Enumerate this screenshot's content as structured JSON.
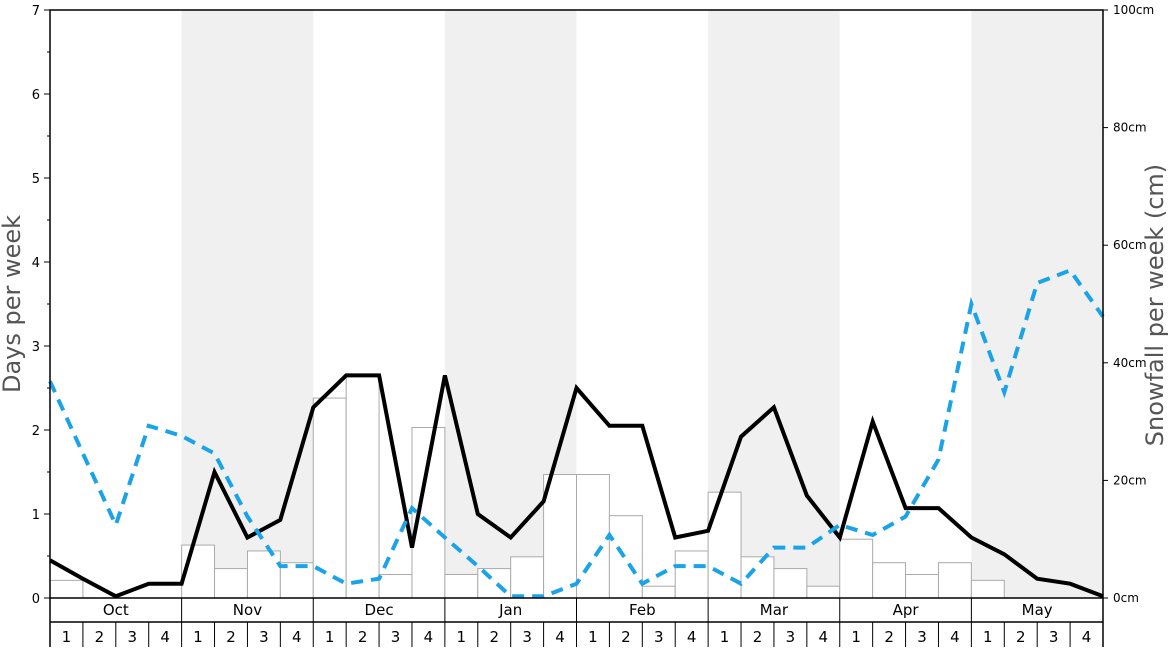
{
  "chart_data": {
    "type": "bar+line",
    "ylabel_left": "Days per week",
    "ylabel_right": "Snowfall per week (cm)",
    "ylim_left": [
      0,
      7
    ],
    "ylim_right": [
      0,
      100
    ],
    "left_ticks": [
      "0",
      "1",
      "2",
      "3",
      "4",
      "5",
      "6",
      "7"
    ],
    "right_ticks": [
      "0cm",
      "20cm",
      "40cm",
      "60cm",
      "80cm",
      "100cm"
    ],
    "months": [
      "Oct",
      "Nov",
      "Dec",
      "Jan",
      "Feb",
      "Mar",
      "Apr",
      "May"
    ],
    "weeks": [
      "1",
      "2",
      "3",
      "4"
    ],
    "month_shading": [
      false,
      true,
      false,
      true,
      false,
      true,
      false,
      true
    ],
    "colors": {
      "shade": "#f0f0f0",
      "bar_fill": "#ffffff",
      "bar_stroke": "#aaaaaa",
      "solid_line": "#000000",
      "dashed_line": "#1aa3e8"
    },
    "series": [
      {
        "kind": "bar",
        "axis": "right",
        "values": [
          3,
          0,
          0,
          0,
          9,
          5,
          8,
          6,
          34,
          38,
          4,
          29,
          4,
          5,
          7,
          21,
          21,
          14,
          2,
          8,
          18,
          7,
          5,
          2,
          10,
          6,
          4,
          6,
          3,
          0,
          0,
          0
        ]
      },
      {
        "kind": "line",
        "style": "solid",
        "axis": "left",
        "values": [
          0.45,
          0.23,
          0.02,
          0.17,
          0.17,
          1.5,
          0.72,
          0.93,
          2.27,
          2.65,
          2.65,
          0.6,
          2.65,
          1.0,
          0.72,
          1.15,
          2.5,
          2.05,
          2.05,
          0.72,
          0.8,
          1.92,
          2.27,
          1.22,
          0.72,
          2.1,
          1.07,
          1.07,
          0.72,
          0.52,
          0.23,
          0.17,
          0.02
        ]
      },
      {
        "kind": "line",
        "style": "dashed",
        "axis": "left",
        "values": [
          2.58,
          1.72,
          0.87,
          2.05,
          1.93,
          1.72,
          0.97,
          0.38,
          0.38,
          0.17,
          0.23,
          1.07,
          0.72,
          0.38,
          0.02,
          0.02,
          0.17,
          0.75,
          0.17,
          0.38,
          0.38,
          0.17,
          0.6,
          0.6,
          0.87,
          0.75,
          0.97,
          1.65,
          3.5,
          2.45,
          3.75,
          3.9,
          3.35
        ]
      }
    ]
  }
}
